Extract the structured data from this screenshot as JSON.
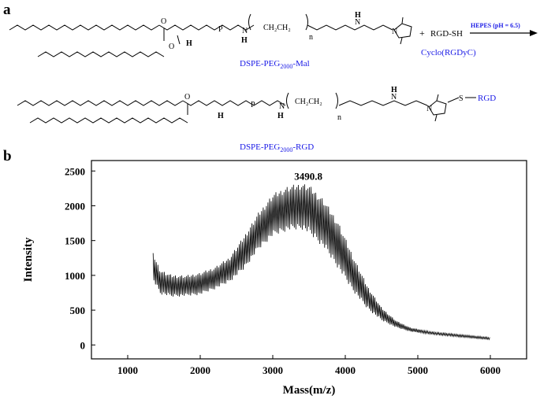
{
  "panel_a": {
    "label": "a",
    "reactant_label_prefix": "DSPE-PEG",
    "reactant_label_sub": "2000",
    "reactant_label_suffix": "-Mal",
    "plus": "+",
    "reagent": "RGD-SH",
    "reagent_name": "Cyclo(RGDyC)",
    "condition": "HEPES (pH = 6.5)",
    "product_label_prefix": "DSPE-PEG",
    "product_label_sub": "2000",
    "product_label_suffix": "-RGD",
    "product_tag": "RGD",
    "product_tag_bond": "S",
    "atom_O": "O",
    "atom_P": "P",
    "atom_N": "N",
    "atom_H": "H",
    "peg_unit": "CH₂CH₂",
    "n": "n",
    "colors": {
      "label_blue": "#1a1ae6",
      "line": "#000000"
    }
  },
  "panel_b": {
    "label": "b"
  },
  "chart_data": {
    "type": "line",
    "title": "",
    "xlabel": "Mass(m/z)",
    "ylabel": "Intensity",
    "xlim": [
      500,
      6500
    ],
    "ylim": [
      -200,
      2650
    ],
    "x_ticks": [
      1000,
      2000,
      3000,
      4000,
      5000,
      6000
    ],
    "y_ticks": [
      0,
      500,
      1000,
      1500,
      2000,
      2500
    ],
    "annotation": {
      "text": "3490.8",
      "x": 3490.8,
      "y": 2330
    },
    "series": [
      {
        "envelope_upper": [
          [
            1350,
            1320
          ],
          [
            1450,
            1080
          ],
          [
            1600,
            1010
          ],
          [
            1800,
            1000
          ],
          [
            2000,
            1040
          ],
          [
            2200,
            1120
          ],
          [
            2400,
            1260
          ],
          [
            2600,
            1560
          ],
          [
            2800,
            1900
          ],
          [
            3000,
            2170
          ],
          [
            3200,
            2280
          ],
          [
            3400,
            2330
          ],
          [
            3500,
            2300
          ],
          [
            3700,
            2100
          ],
          [
            3900,
            1780
          ],
          [
            4100,
            1300
          ],
          [
            4300,
            860
          ],
          [
            4500,
            540
          ],
          [
            4700,
            350
          ],
          [
            4900,
            250
          ],
          [
            5200,
            190
          ],
          [
            5600,
            150
          ],
          [
            6000,
            110
          ]
        ],
        "envelope_lower": [
          [
            1350,
            930
          ],
          [
            1450,
            730
          ],
          [
            1600,
            690
          ],
          [
            1800,
            700
          ],
          [
            2000,
            720
          ],
          [
            2200,
            800
          ],
          [
            2400,
            900
          ],
          [
            2600,
            1080
          ],
          [
            2800,
            1360
          ],
          [
            3000,
            1560
          ],
          [
            3200,
            1640
          ],
          [
            3400,
            1660
          ],
          [
            3500,
            1600
          ],
          [
            3700,
            1400
          ],
          [
            3900,
            1100
          ],
          [
            4100,
            780
          ],
          [
            4300,
            520
          ],
          [
            4500,
            350
          ],
          [
            4700,
            250
          ],
          [
            4900,
            190
          ],
          [
            5200,
            150
          ],
          [
            5600,
            110
          ],
          [
            6000,
            75
          ]
        ]
      }
    ],
    "grid": false,
    "legend": "none"
  }
}
